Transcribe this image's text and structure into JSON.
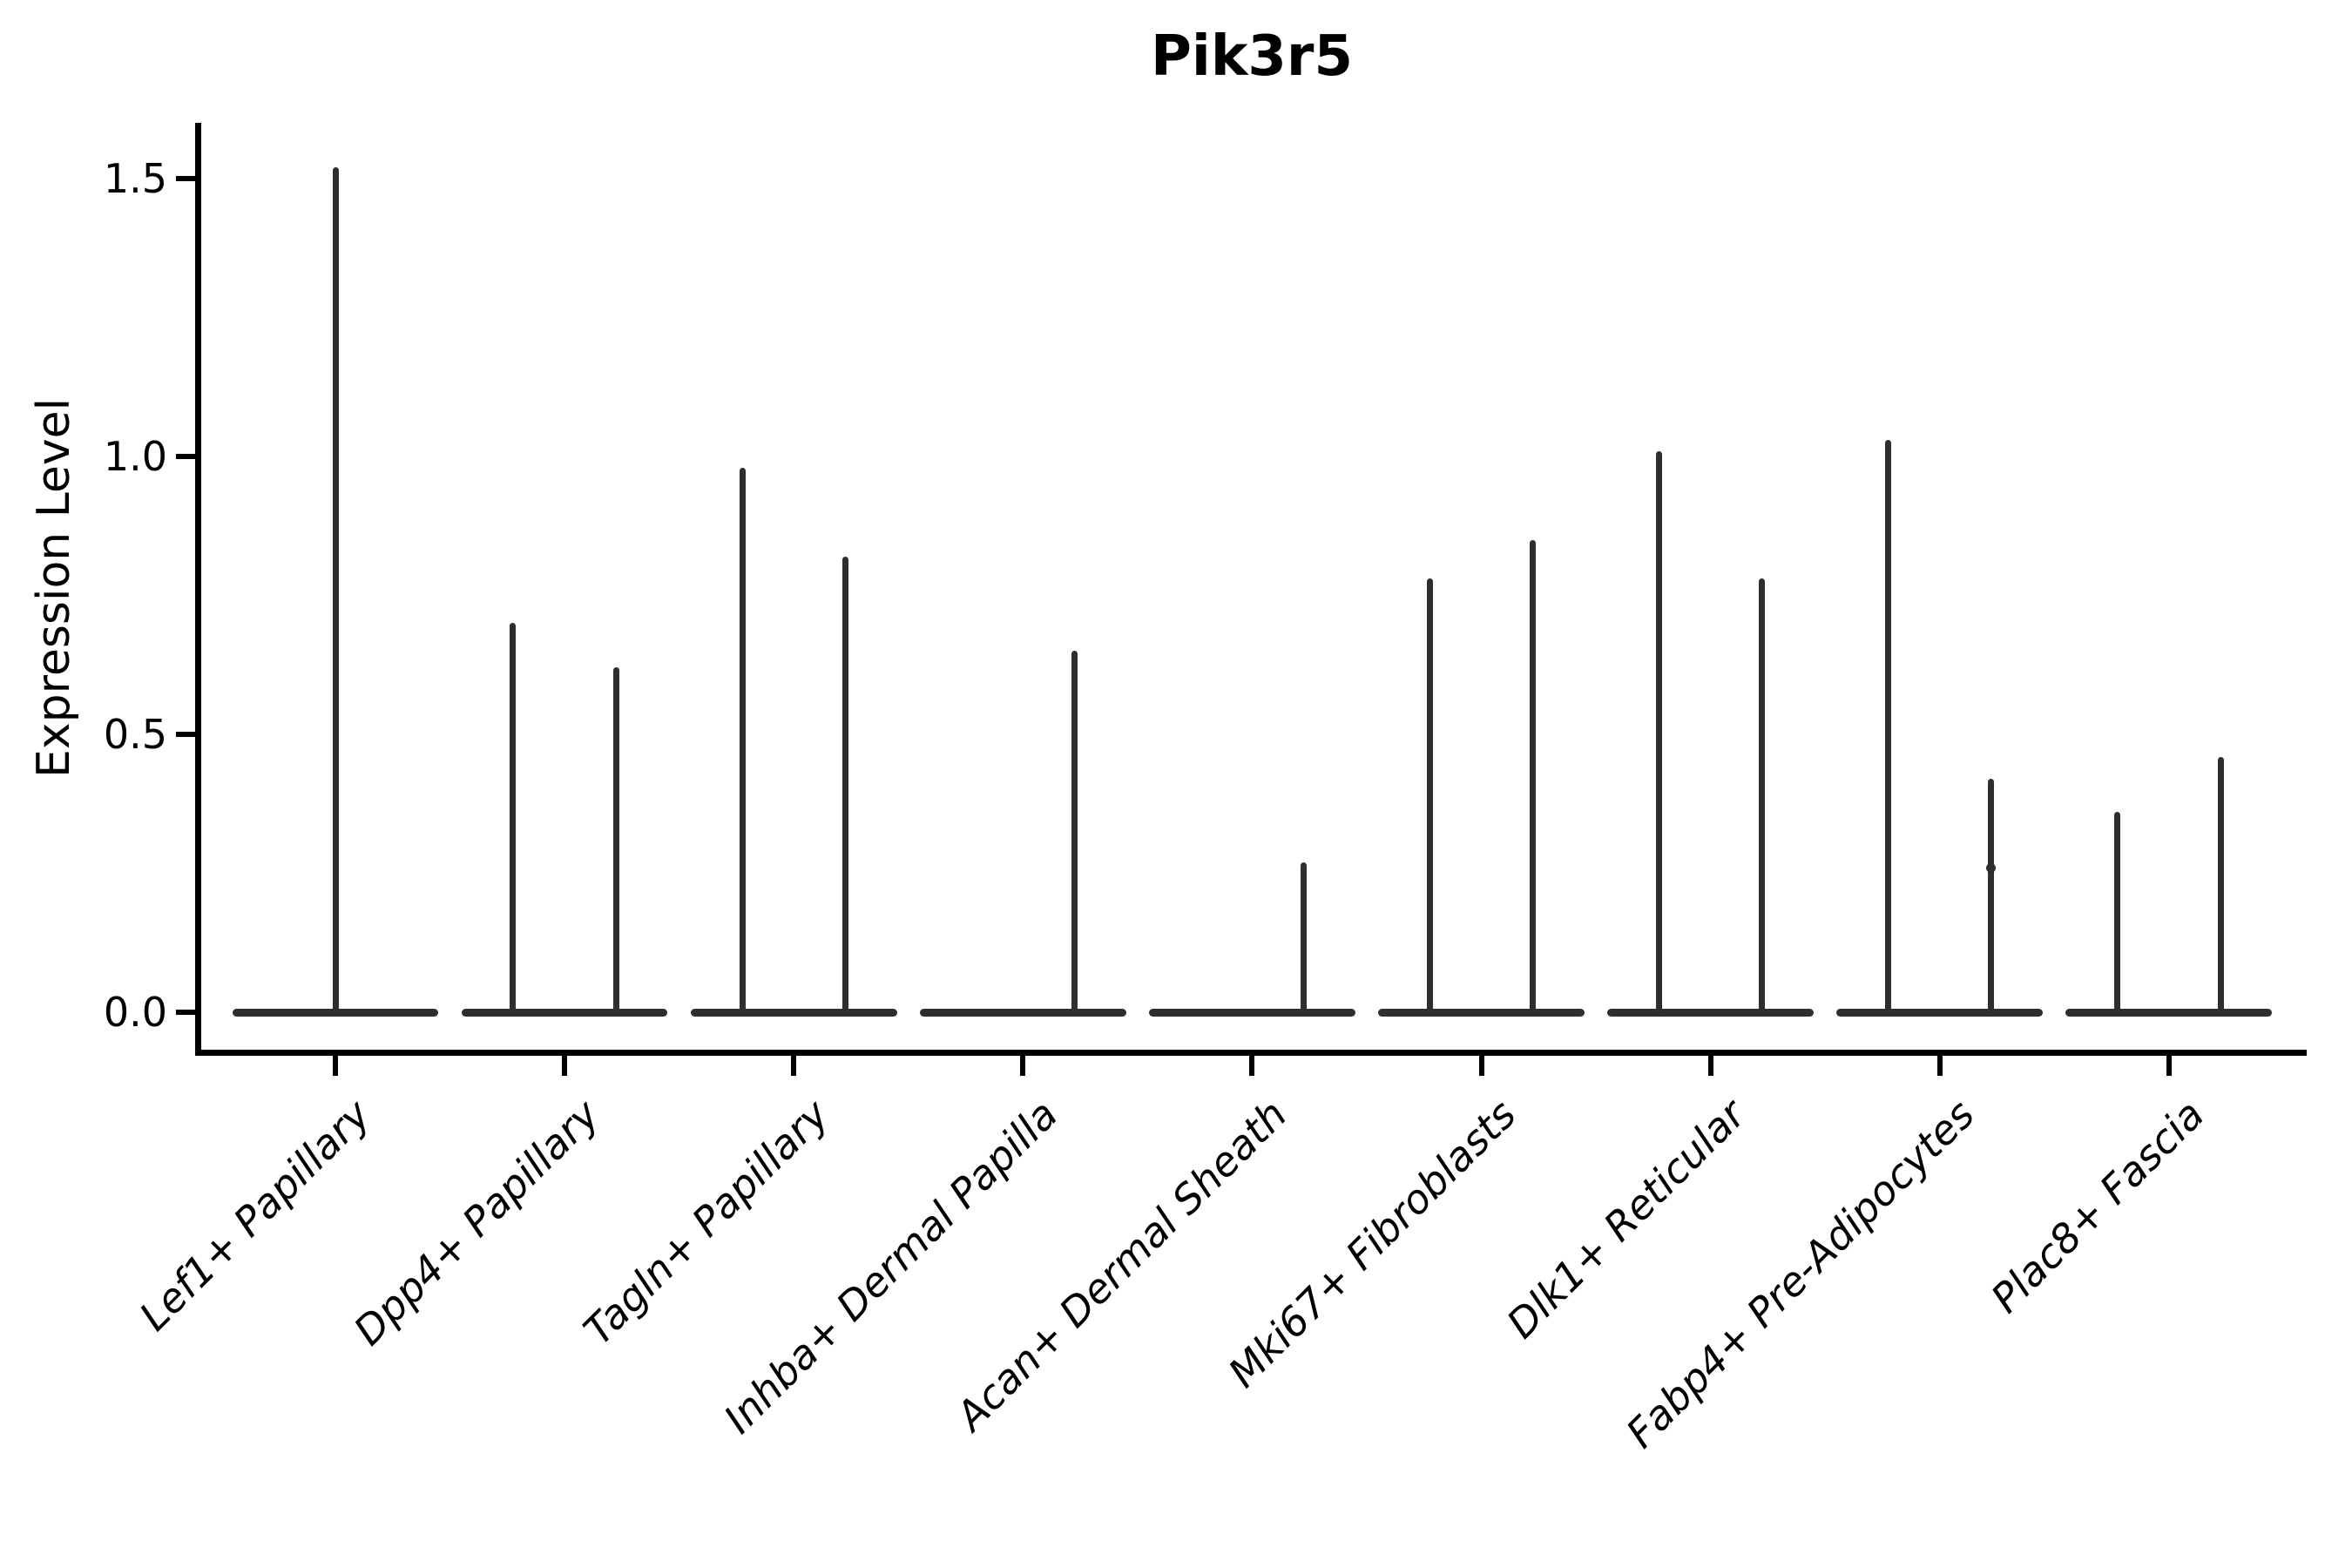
{
  "title": "Pik3r5",
  "ylabel": "Expression Level",
  "chart_data": {
    "type": "violin",
    "title": "Pik3r5",
    "xlabel": "",
    "ylabel": "Expression Level",
    "ylim": [
      -0.07,
      1.6
    ],
    "grid": false,
    "legend": "none",
    "description": "Violin plot of Pik3r5 expression per fibroblast cluster; violins are collapsed flat at 0 with thin spikes reaching the maximum expression value. Most categories contain two side-by-side violins (two groups); Lef1+ Papillary shows a single full-width violin and Inhba+/Acan+ have a flat (all-zero) left group.",
    "y_ticks": [
      0.0,
      0.5,
      1.0,
      1.5
    ],
    "y_tick_labels": [
      "0.0",
      "0.5",
      "1.0",
      "1.5"
    ],
    "categories": [
      "Lef1+ Papillary",
      "Dpp4+ Papillary",
      "Tagln+ Papillary",
      "Inhba+ Dermal Papilla",
      "Acan+ Dermal Sheath",
      "Mki67+ Fibroblasts",
      "Dlk1+ Reticular",
      "Fabp4+ Pre-Adipocytes",
      "Plac8+ Fascia"
    ],
    "violins": [
      {
        "category": "Lef1+ Papillary",
        "groups": [
          {
            "position": "full",
            "max": 1.52
          }
        ]
      },
      {
        "category": "Dpp4+ Papillary",
        "groups": [
          {
            "position": "left",
            "max": 0.7
          },
          {
            "position": "right",
            "max": 0.62
          }
        ]
      },
      {
        "category": "Tagln+ Papillary",
        "groups": [
          {
            "position": "left",
            "max": 0.98
          },
          {
            "position": "right",
            "max": 0.82
          }
        ]
      },
      {
        "category": "Inhba+ Dermal Papilla",
        "groups": [
          {
            "position": "left",
            "max": 0.0
          },
          {
            "position": "right",
            "max": 0.65
          }
        ]
      },
      {
        "category": "Acan+ Dermal Sheath",
        "groups": [
          {
            "position": "left",
            "max": 0.0
          },
          {
            "position": "right",
            "max": 0.27
          }
        ]
      },
      {
        "category": "Mki67+ Fibroblasts",
        "groups": [
          {
            "position": "left",
            "max": 0.78
          },
          {
            "position": "right",
            "max": 0.85
          }
        ]
      },
      {
        "category": "Dlk1+ Reticular",
        "groups": [
          {
            "position": "left",
            "max": 1.01
          },
          {
            "position": "right",
            "max": 0.78
          }
        ]
      },
      {
        "category": "Fabp4+ Pre-Adipocytes",
        "groups": [
          {
            "position": "left",
            "max": 1.03
          },
          {
            "position": "right",
            "max": 0.42
          }
        ]
      },
      {
        "category": "Plac8+ Fascia",
        "groups": [
          {
            "position": "left",
            "max": 0.36
          },
          {
            "position": "right",
            "max": 0.46
          }
        ]
      }
    ],
    "points": [
      {
        "category": "Fabp4+ Pre-Adipocytes",
        "group": "right",
        "value": 0.26
      }
    ],
    "colors": {
      "violin": "#2e2e2e",
      "axis": "#000000",
      "background": "#ffffff"
    }
  }
}
